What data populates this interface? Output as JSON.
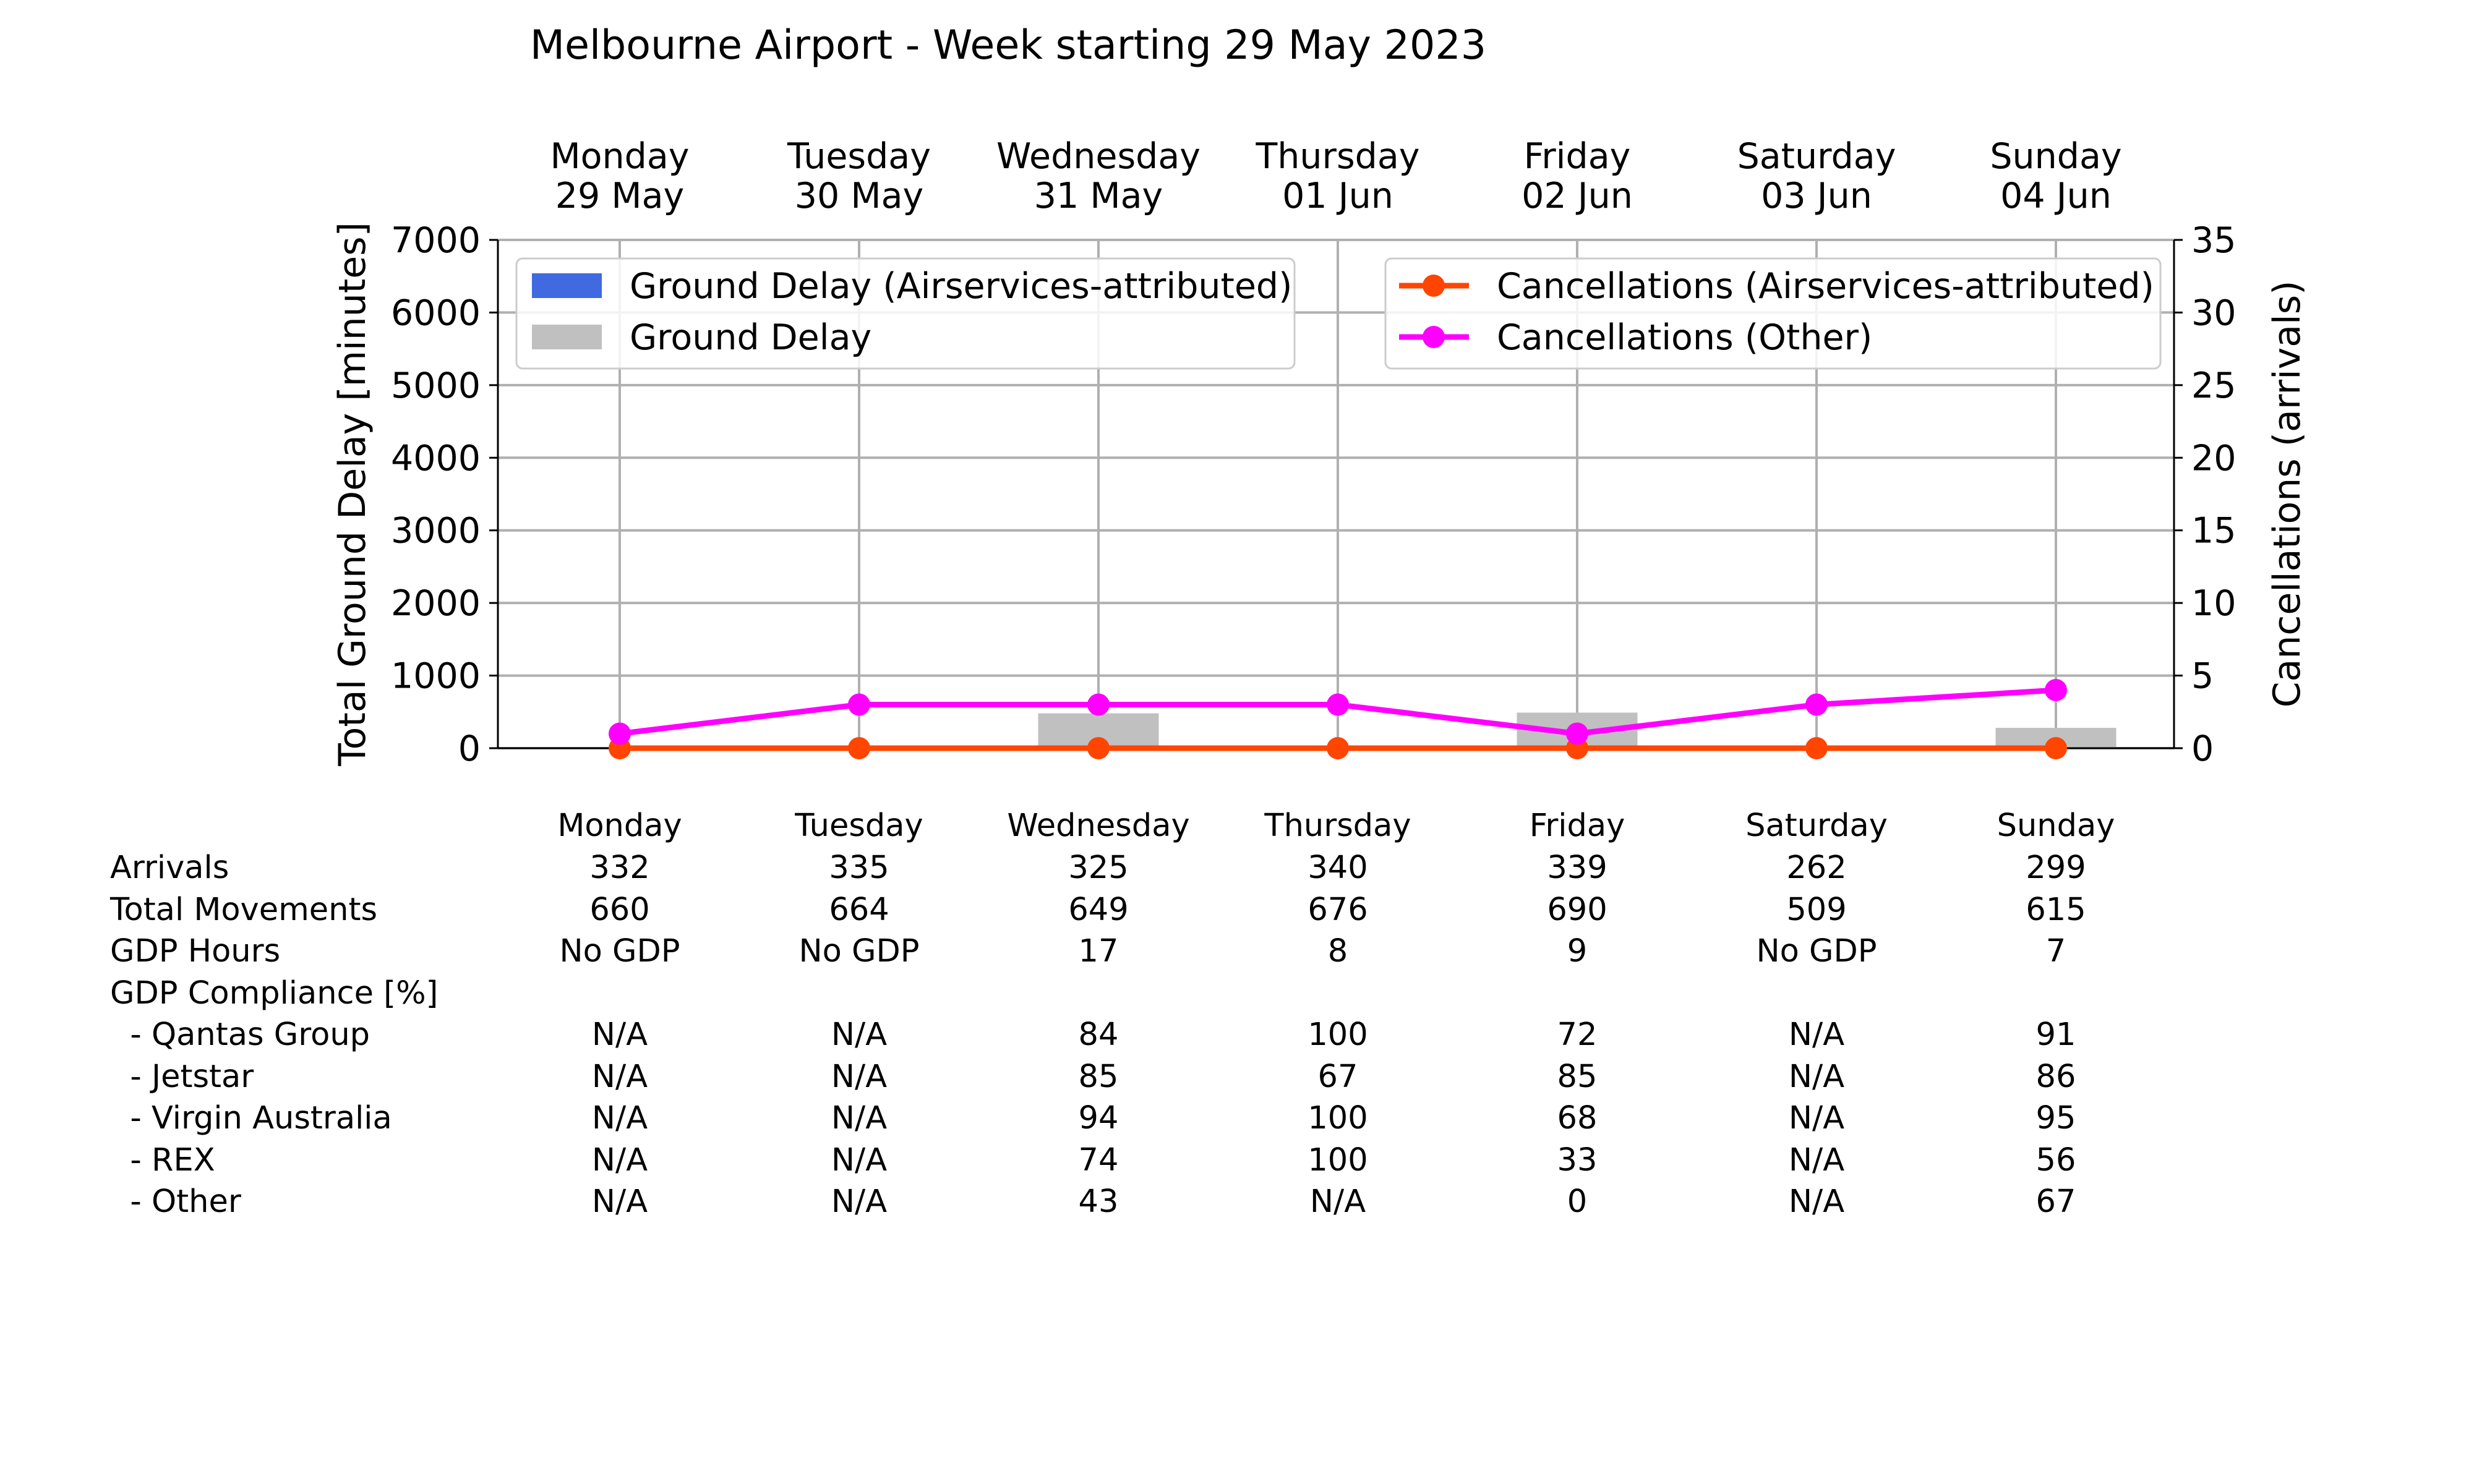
{
  "chart_data": {
    "type": "bar",
    "title": "Melbourne Airport - Week starting 29 May 2023",
    "ylabel": "Total Ground Delay [minutes]",
    "y2label": "Cancellations (arrivals)",
    "ylim": [
      0,
      7000
    ],
    "y2lim": [
      0,
      35
    ],
    "yticks": [
      "0",
      "1000",
      "2000",
      "3000",
      "4000",
      "5000",
      "6000",
      "7000"
    ],
    "y2ticks": [
      "0",
      "5",
      "10",
      "15",
      "20",
      "25",
      "30",
      "35"
    ],
    "grid": true,
    "categories": [
      {
        "day": "Monday",
        "date": "29 May"
      },
      {
        "day": "Tuesday",
        "date": "30 May"
      },
      {
        "day": "Wednesday",
        "date": "31 May"
      },
      {
        "day": "Thursday",
        "date": "01 Jun"
      },
      {
        "day": "Friday",
        "date": "02 Jun"
      },
      {
        "day": "Saturday",
        "date": "03 Jun"
      },
      {
        "day": "Sunday",
        "date": "04 Jun"
      }
    ],
    "bar_series": [
      {
        "name": "Ground Delay (Airservices-attributed)",
        "color": "#4169e1",
        "values": [
          0,
          0,
          0,
          0,
          0,
          0,
          0
        ]
      },
      {
        "name": "Ground Delay",
        "color": "#c0c0c0",
        "values": [
          0,
          0,
          480,
          30,
          490,
          0,
          280
        ]
      }
    ],
    "line_series": [
      {
        "name": "Cancellations (Airservices-attributed)",
        "color": "#ff4500",
        "values": [
          0,
          0,
          0,
          0,
          0,
          0,
          0
        ]
      },
      {
        "name": "Cancellations (Other)",
        "color": "#ff00ff",
        "values": [
          1,
          3,
          3,
          3,
          1,
          3,
          4
        ]
      }
    ],
    "legend_left_placement": "upper-left",
    "legend_right_placement": "upper-right"
  },
  "table": {
    "header": [
      "Monday",
      "Tuesday",
      "Wednesday",
      "Thursday",
      "Friday",
      "Saturday",
      "Sunday"
    ],
    "rows": [
      {
        "label": "Arrivals",
        "values": [
          "332",
          "335",
          "325",
          "340",
          "339",
          "262",
          "299"
        ]
      },
      {
        "label": "Total Movements",
        "values": [
          "660",
          "664",
          "649",
          "676",
          "690",
          "509",
          "615"
        ]
      },
      {
        "label": "GDP Hours",
        "values": [
          "No GDP",
          "No GDP",
          "17",
          "8",
          "9",
          "No GDP",
          "7"
        ]
      },
      {
        "label": "GDP Compliance [%]",
        "values": [
          "",
          "",
          "",
          "",
          "",
          "",
          ""
        ]
      },
      {
        "label": "  - Qantas Group",
        "values": [
          "N/A",
          "N/A",
          "84",
          "100",
          "72",
          "N/A",
          "91"
        ]
      },
      {
        "label": "  - Jetstar",
        "values": [
          "N/A",
          "N/A",
          "85",
          "67",
          "85",
          "N/A",
          "86"
        ]
      },
      {
        "label": "  - Virgin Australia",
        "values": [
          "N/A",
          "N/A",
          "94",
          "100",
          "68",
          "N/A",
          "95"
        ]
      },
      {
        "label": "  - REX",
        "values": [
          "N/A",
          "N/A",
          "74",
          "100",
          "33",
          "N/A",
          "56"
        ]
      },
      {
        "label": "  - Other",
        "values": [
          "N/A",
          "N/A",
          "43",
          "N/A",
          "0",
          "N/A",
          "67"
        ]
      }
    ]
  }
}
